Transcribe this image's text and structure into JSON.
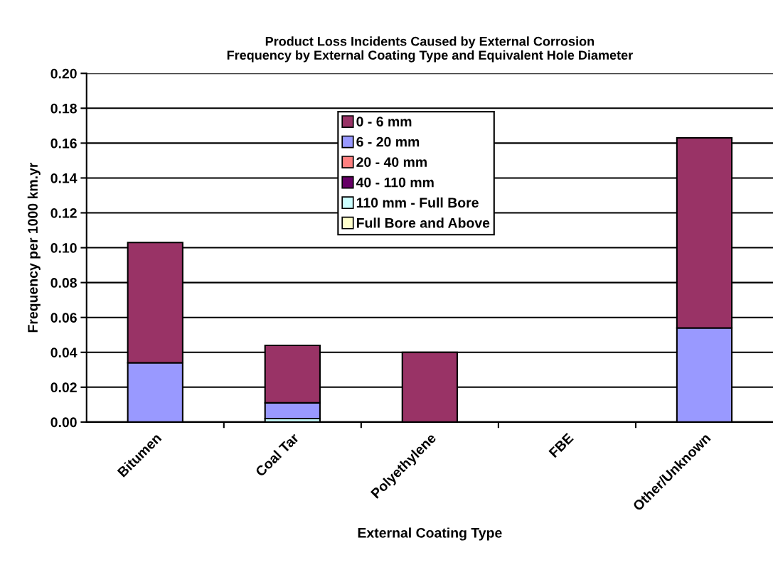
{
  "chart_data": {
    "type": "bar",
    "title": "Product Loss Incidents Caused by External Corrosion\nFrequency by External Coating Type and Equivalent Hole Diameter",
    "xlabel": "External Coating Type",
    "ylabel": "Frequency per 1000 km.yr",
    "categories": [
      "Bitumen",
      "Coal Tar",
      "Polyethylene",
      "FBE",
      "Other/Unknown"
    ],
    "stacked": true,
    "series": [
      {
        "name": "Full Bore and Above",
        "color": "#ffffcc",
        "values": [
          0,
          0,
          0,
          0,
          0
        ]
      },
      {
        "name": "110 mm - Full Bore",
        "color": "#ccffff",
        "values": [
          0,
          0.002,
          0,
          0,
          0
        ]
      },
      {
        "name": "40 - 110 mm",
        "color": "#660066",
        "values": [
          0,
          0,
          0,
          0,
          0
        ]
      },
      {
        "name": "20 - 40 mm",
        "color": "#ff8080",
        "values": [
          0,
          0,
          0,
          0,
          0
        ]
      },
      {
        "name": "6 - 20 mm",
        "color": "#9999ff",
        "values": [
          0.034,
          0.009,
          0,
          0,
          0.054
        ]
      },
      {
        "name": "0 - 6 mm",
        "color": "#993366",
        "values": [
          0.069,
          0.033,
          0.04,
          0,
          0.109
        ]
      }
    ],
    "ylim": [
      0,
      0.2
    ],
    "yticks": [
      {
        "value": 0,
        "label": "0.00"
      },
      {
        "value": 0.02,
        "label": "0.02"
      },
      {
        "value": 0.04,
        "label": "0.04"
      },
      {
        "value": 0.06,
        "label": "0.06"
      },
      {
        "value": 0.08,
        "label": "0.08"
      },
      {
        "value": 0.1,
        "label": "0.10"
      },
      {
        "value": 0.12,
        "label": "0.12"
      },
      {
        "value": 0.14,
        "label": "0.14"
      },
      {
        "value": 0.16,
        "label": "0.16"
      },
      {
        "value": 0.18,
        "label": "0.18"
      },
      {
        "value": 0.2,
        "label": "0.20"
      }
    ],
    "grid": "y",
    "legend": "top"
  }
}
